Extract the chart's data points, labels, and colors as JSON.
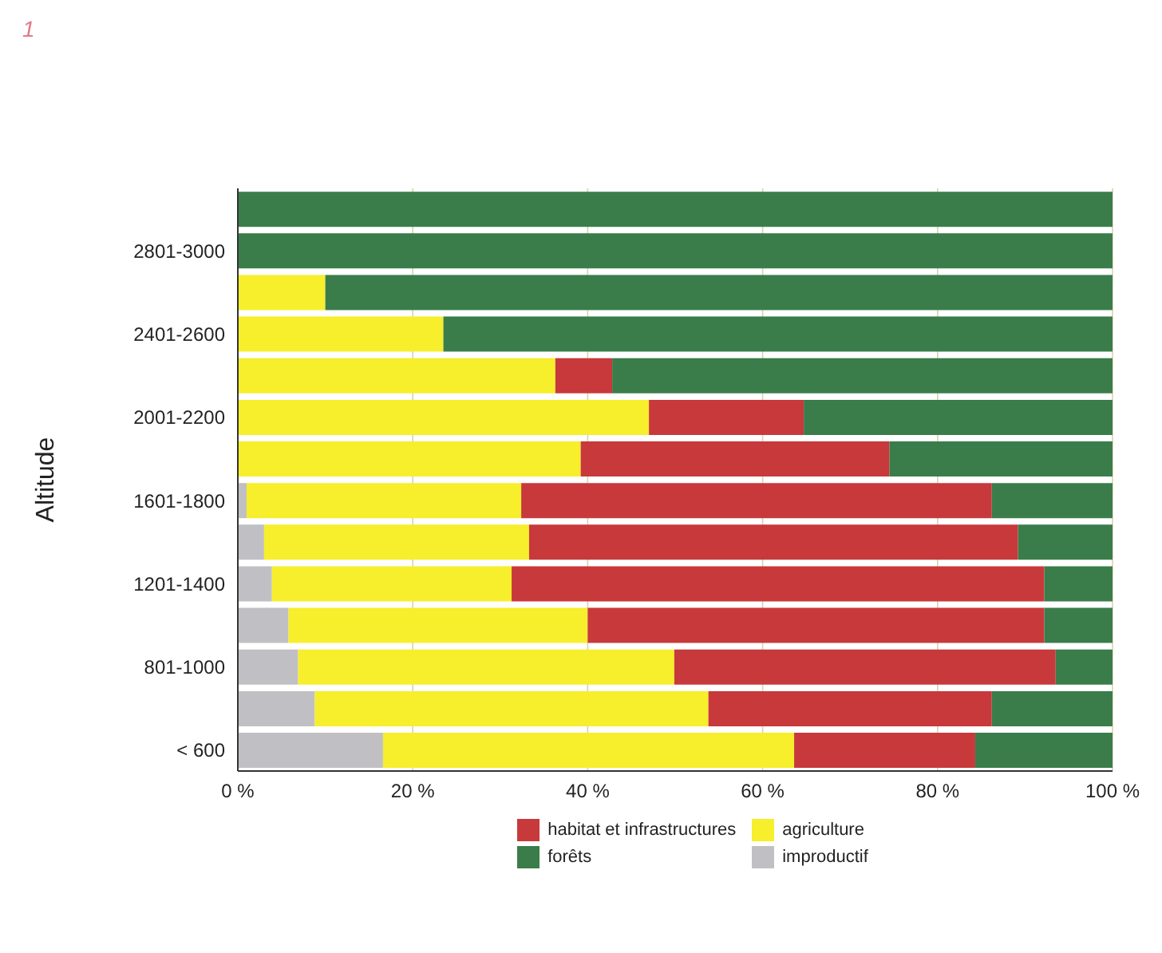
{
  "chart_data": {
    "type": "bar",
    "orientation": "horizontal",
    "stacked": true,
    "ylabel": "Altitude",
    "annotations": [
      "1"
    ],
    "categories": [
      null,
      "2801-3000",
      null,
      "2401-2600",
      null,
      "2001-2200",
      null,
      "1601-1800",
      null,
      "1201-1400",
      null,
      "801-1000",
      null,
      "< 600"
    ],
    "series": [
      {
        "name": "improductif",
        "color": "#c0c0c4",
        "values": [
          0,
          0,
          0,
          0,
          0,
          0,
          0,
          1,
          3,
          3.9,
          5.8,
          6.9,
          8.8,
          16.6
        ]
      },
      {
        "name": "agriculture",
        "color": "#f7ee2c",
        "values": [
          0,
          0,
          10,
          23.5,
          36.3,
          47,
          39.2,
          31.4,
          30.3,
          27.4,
          34.2,
          43,
          45,
          47
        ]
      },
      {
        "name": "habitat et infrastructures",
        "color": "#c8393b",
        "values": [
          0,
          0,
          0,
          0,
          6.5,
          17.7,
          35.3,
          53.8,
          55.9,
          60.9,
          52.2,
          43.6,
          32.4,
          20.7
        ]
      },
      {
        "name": "forêts",
        "color": "#3a7d4a",
        "values": [
          100,
          100,
          90,
          76.5,
          57.2,
          35.3,
          25.5,
          13.8,
          10.8,
          7.8,
          7.8,
          6.5,
          13.8,
          15.7
        ]
      }
    ],
    "xlim": [
      0,
      100
    ],
    "xticks": [
      {
        "value": 0,
        "label": "0 %"
      },
      {
        "value": 20,
        "label": "20 %"
      },
      {
        "value": 40,
        "label": "40 %"
      },
      {
        "value": 60,
        "label": "60 %"
      },
      {
        "value": 80,
        "label": "80 %"
      },
      {
        "value": 100,
        "label": "100 %"
      }
    ],
    "grid": "x",
    "legend": "bottom"
  }
}
